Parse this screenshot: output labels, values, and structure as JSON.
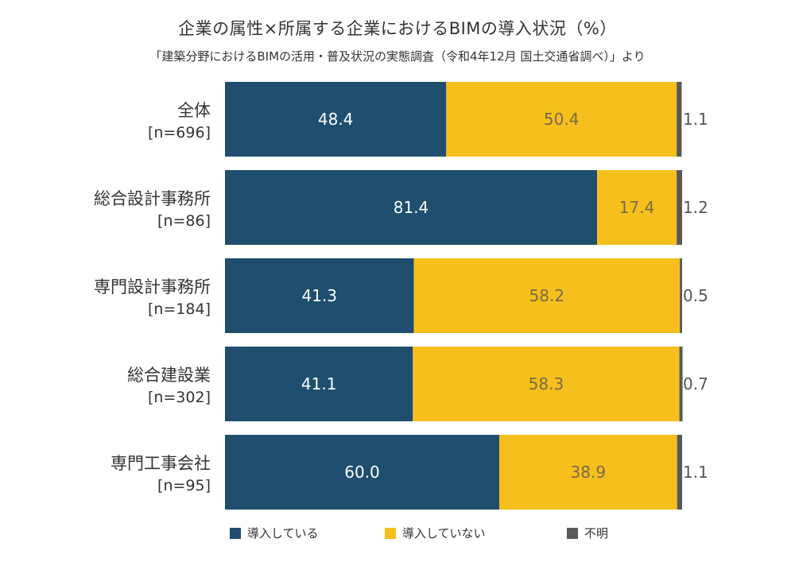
{
  "chart_data": {
    "type": "bar",
    "orientation": "horizontal",
    "stacked": true,
    "title": "企業の属性×所属する企業におけるBIMの導入状況（%）",
    "subtitle": "「建築分野におけるBIMの活用・普及状況の実態調査（令和4年12月 国土交通省調べ）」より",
    "categories": [
      {
        "name": "全体",
        "n": "[n=696]"
      },
      {
        "name": "総合設計事務所",
        "n": "[n=86]"
      },
      {
        "name": "専門設計事務所",
        "n": "[n=184]"
      },
      {
        "name": "総合建設業",
        "n": "[n=302]"
      },
      {
        "name": "専門工事会社",
        "n": "[n=95]"
      }
    ],
    "series": [
      {
        "name": "導入している",
        "color": "#1f4e6e",
        "label_color": "#ffffff",
        "values": [
          "48.4",
          "81.4",
          "41.3",
          "41.1",
          "60.0"
        ]
      },
      {
        "name": "導入していない",
        "color": "#f6bf1c",
        "label_color": "#7a6a45",
        "values": [
          "50.4",
          "17.4",
          "58.2",
          "58.3",
          "38.9"
        ]
      },
      {
        "name": "不明",
        "color": "#595959",
        "label_color": "#555555",
        "values": [
          "1.1",
          "1.2",
          "0.5",
          "0.7",
          "1.1"
        ]
      }
    ],
    "xlim": [
      0,
      100
    ],
    "grid": false,
    "legend_position": "bottom"
  }
}
